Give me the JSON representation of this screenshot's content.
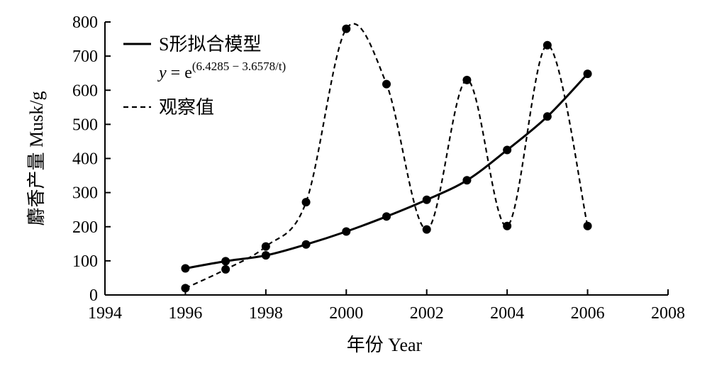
{
  "chart_data": {
    "type": "line",
    "title": "",
    "xlabel": "年份 Year",
    "ylabel": "麝香产量 Musk/g",
    "xlim": [
      1994,
      2008
    ],
    "ylim": [
      0,
      800
    ],
    "xticks": [
      1994,
      1996,
      1998,
      2000,
      2002,
      2004,
      2006,
      2008
    ],
    "yticks": [
      0,
      100,
      200,
      300,
      400,
      500,
      600,
      700,
      800
    ],
    "grid": false,
    "legend_position": "top-left",
    "series": [
      {
        "name": "S形拟合模型",
        "style": "solid",
        "formula": {
          "y_var": "y",
          "equals": " = e",
          "exponent": "(6.4285 − 3.6578/t)"
        },
        "x": [
          1996,
          1997,
          1998,
          1999,
          2000,
          2001,
          2002,
          2003,
          2004,
          2005,
          2006
        ],
        "values": [
          78,
          99,
          116,
          148,
          186,
          230,
          279,
          336,
          425,
          523,
          648
        ]
      },
      {
        "name": "观察值",
        "style": "dashed",
        "x": [
          1996,
          1997,
          1998,
          1999,
          2000,
          2001,
          2002,
          2003,
          2004,
          2005,
          2006
        ],
        "values": [
          20,
          75,
          142,
          272,
          780,
          618,
          192,
          630,
          202,
          732,
          202
        ]
      }
    ]
  }
}
